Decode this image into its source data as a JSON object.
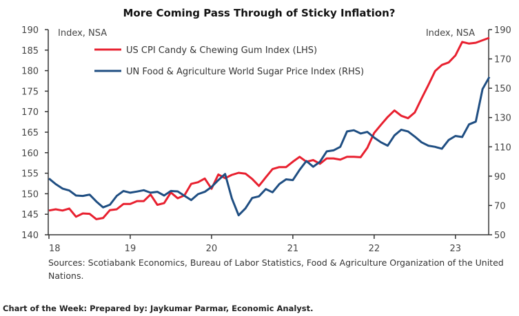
{
  "chart_data": {
    "type": "line",
    "title": "More Coming Pass Through of Sticky Inflation?",
    "y_left": {
      "label": "Index, NSA",
      "range": [
        140,
        190
      ],
      "ticks": [
        140,
        145,
        150,
        155,
        160,
        165,
        170,
        175,
        180,
        185,
        190
      ]
    },
    "y_right": {
      "label": "Index, NSA",
      "range": [
        50,
        190
      ],
      "ticks": [
        50,
        70,
        90,
        110,
        130,
        150,
        170,
        190
      ]
    },
    "x_tick_labels": [
      "18",
      "19",
      "20",
      "21",
      "22",
      "23"
    ],
    "x": [
      "2018-01",
      "2018-02",
      "2018-03",
      "2018-04",
      "2018-05",
      "2018-06",
      "2018-07",
      "2018-08",
      "2018-09",
      "2018-10",
      "2018-11",
      "2018-12",
      "2019-01",
      "2019-02",
      "2019-03",
      "2019-04",
      "2019-05",
      "2019-06",
      "2019-07",
      "2019-08",
      "2019-09",
      "2019-10",
      "2019-11",
      "2019-12",
      "2020-01",
      "2020-02",
      "2020-03",
      "2020-04",
      "2020-05",
      "2020-06",
      "2020-07",
      "2020-08",
      "2020-09",
      "2020-10",
      "2020-11",
      "2020-12",
      "2021-01",
      "2021-02",
      "2021-03",
      "2021-04",
      "2021-05",
      "2021-06",
      "2021-07",
      "2021-08",
      "2021-09",
      "2021-10",
      "2021-11",
      "2021-12",
      "2022-01",
      "2022-02",
      "2022-03",
      "2022-04",
      "2022-05",
      "2022-06",
      "2022-07",
      "2022-08",
      "2022-09",
      "2022-10",
      "2022-11",
      "2022-12",
      "2023-01",
      "2023-02",
      "2023-03",
      "2023-04",
      "2023-05",
      "2023-06"
    ],
    "series": [
      {
        "name": "US CPI Candy & Chewing Gum Index (LHS)",
        "axis": "left",
        "color": "#e8202f",
        "values": [
          145.9,
          146.2,
          145.9,
          146.4,
          144.4,
          145.2,
          145.1,
          143.8,
          144.1,
          146.0,
          146.2,
          147.5,
          147.5,
          148.2,
          148.2,
          149.8,
          147.3,
          147.7,
          150.3,
          148.9,
          149.6,
          152.4,
          152.8,
          153.7,
          151.2,
          154.7,
          153.8,
          154.6,
          155.1,
          154.9,
          153.6,
          151.9,
          154.0,
          156.0,
          156.5,
          156.5,
          157.8,
          159.0,
          157.8,
          158.2,
          157.3,
          158.6,
          158.6,
          158.3,
          159.0,
          159.0,
          158.9,
          161.2,
          164.8,
          166.8,
          168.7,
          170.3,
          169.0,
          168.4,
          169.8,
          173.2,
          176.5,
          179.9,
          181.4,
          182.0,
          183.7,
          187.0,
          186.6,
          186.8,
          187.4,
          188.0
        ]
      },
      {
        "name": "UN Food & Agriculture World Sugar Price Index (RHS)",
        "axis": "right",
        "color": "#1f4e82",
        "values": [
          88.4,
          84.6,
          81.5,
          80.2,
          76.8,
          76.5,
          77.4,
          72.7,
          68.7,
          70.5,
          76.5,
          79.9,
          78.7,
          79.5,
          80.4,
          78.7,
          79.3,
          76.8,
          79.9,
          79.6,
          76.6,
          73.7,
          77.7,
          79.3,
          82.6,
          87.3,
          91.5,
          74.8,
          63.3,
          68.0,
          75.1,
          76.2,
          81.2,
          79.0,
          84.6,
          87.8,
          87.3,
          94.3,
          100.3,
          96.4,
          99.8,
          106.9,
          107.6,
          110.0,
          120.5,
          121.3,
          119.1,
          120.2,
          116.3,
          113.1,
          110.8,
          117.8,
          121.7,
          120.5,
          117.0,
          113.1,
          110.8,
          110.0,
          108.7,
          114.7,
          117.4,
          116.7,
          125.3,
          127.2,
          149.4,
          157.7
        ]
      }
    ],
    "grid": false,
    "legend": "top-left"
  },
  "source": {
    "line1": "Sources: Scotiabank Economics, Bureau of Labor Statistics, Food & Agriculture Organization of the United",
    "line2": "Nations."
  },
  "footer": "Chart of the Week: Prepared by: Jaykumar Parmar, Economic Analyst."
}
